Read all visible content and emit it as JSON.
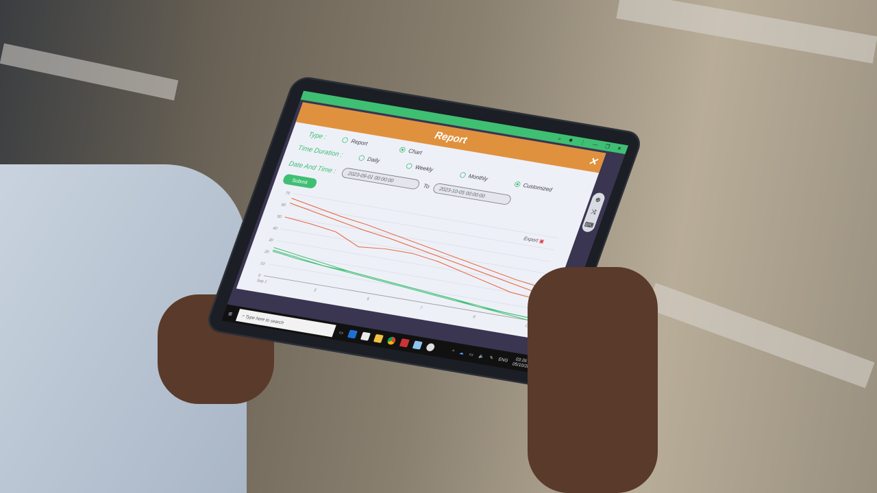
{
  "dialog": {
    "title": "Report",
    "close_icon": "close-icon"
  },
  "form": {
    "type_label": "Type :",
    "type_options": [
      {
        "label": "Report",
        "selected": false
      },
      {
        "label": "Chart",
        "selected": true
      }
    ],
    "duration_label": "Time Duration :",
    "duration_options": [
      {
        "label": "Daily",
        "selected": false
      },
      {
        "label": "Weekly",
        "selected": false
      },
      {
        "label": "Monthly",
        "selected": false
      },
      {
        "label": "Customized",
        "selected": true
      }
    ],
    "date_label": "Date And Time :",
    "from_value": "2023-09-01 00:00:00",
    "to_label": "To",
    "to_value": "2023-10-05 00:00:00",
    "submit_label": "Submit",
    "export_label": "Export"
  },
  "side_tools": [
    "zoom-in-icon",
    "shuffle-icon",
    "keyboard-icon"
  ],
  "taskbar": {
    "search_placeholder": "Type here to search",
    "lang": "ENG",
    "time": "03:26 PM",
    "date": "05/10/2023"
  },
  "colors": {
    "accent": "#3fbf72",
    "header": "#e0913e",
    "series_orange": "#e8673a",
    "series_green": "#3fbf72"
  },
  "chart_data": {
    "type": "line",
    "x_ticks": [
      "Sep 1",
      "3",
      "5",
      "7",
      "9",
      "11"
    ],
    "x": [
      1,
      2,
      3,
      4,
      5,
      6,
      7,
      8,
      9,
      10,
      11
    ],
    "y_ticks": [
      0,
      10,
      20,
      30,
      40,
      50,
      60,
      70
    ],
    "ylim": [
      0,
      70
    ],
    "grid": true,
    "series": [
      {
        "color": "#e8673a",
        "values": [
          66,
          62,
          58,
          55,
          51,
          47,
          43,
          39,
          35,
          31,
          28
        ]
      },
      {
        "color": "#e8673a",
        "values": [
          62,
          58,
          54,
          50,
          47,
          43,
          39,
          35,
          31,
          27,
          23
        ]
      },
      {
        "color": "#e8673a",
        "values": [
          50,
          48,
          45,
          36,
          38,
          38,
          35,
          30,
          25,
          20,
          18
        ]
      },
      {
        "color": "#3fbf72",
        "values": [
          24,
          21,
          18,
          15,
          13,
          11,
          9,
          7,
          5,
          3,
          2
        ]
      },
      {
        "color": "#3fbf72",
        "values": [
          22,
          19,
          16,
          15,
          13,
          11,
          9,
          7,
          4,
          3,
          2
        ]
      },
      {
        "color": "#3fbf72",
        "values": [
          21,
          18,
          16,
          14,
          12,
          10,
          8,
          6,
          4,
          2,
          0
        ]
      }
    ]
  }
}
